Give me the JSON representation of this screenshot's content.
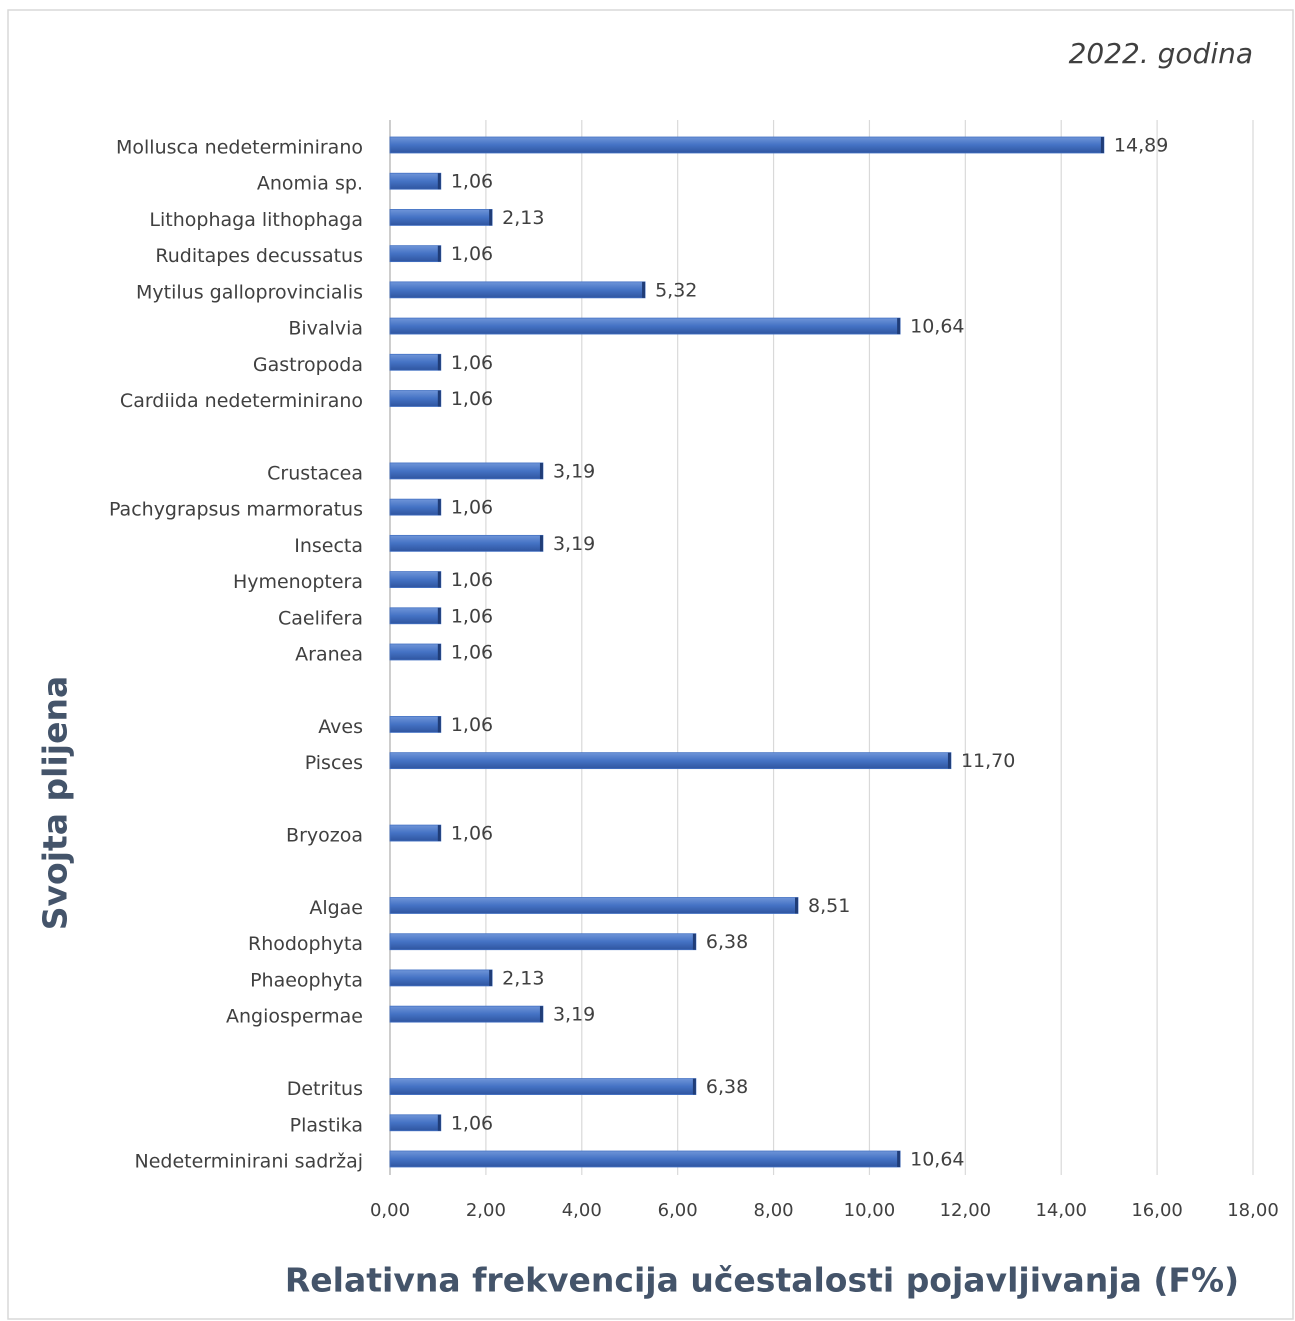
{
  "chart_data": {
    "type": "bar",
    "orientation": "horizontal",
    "title": "2022. godina",
    "x_label": "Relativna frekvencija učestalosti pojavljivanja (F%)",
    "y_label": "Svojta plijena",
    "color": "#4472c4",
    "grid": true,
    "categories": [
      "Mollusca nedeterminirano",
      "Anomia sp.",
      "Lithophaga lithophaga",
      "Ruditapes decussatus",
      "Mytilus galloprovincialis",
      "Bivalvia",
      "Gastropoda",
      "Cardiida nedeterminirano",
      null,
      "Crustacea",
      "Pachygrapsus marmoratus",
      "Insecta",
      "Hymenoptera",
      "Caelifera",
      "Aranea",
      null,
      "Aves",
      "Pisces",
      null,
      "Bryozoa",
      null,
      "Algae",
      "Rhodophyta",
      "Phaeophyta",
      "Angiospermae",
      null,
      "Detritus",
      "Plastika",
      "Nedeterminirani sadržaj"
    ],
    "values": [
      14.89,
      1.06,
      2.13,
      1.06,
      5.32,
      10.64,
      1.06,
      1.06,
      null,
      3.19,
      1.06,
      3.19,
      1.06,
      1.06,
      1.06,
      null,
      1.06,
      11.7,
      null,
      1.06,
      null,
      8.51,
      6.38,
      2.13,
      3.19,
      null,
      6.38,
      1.06,
      10.64
    ],
    "value_labels": [
      "14,89",
      "1,06",
      "2,13",
      "1,06",
      "5,32",
      "10,64",
      "1,06",
      "1,06",
      null,
      "3,19",
      "1,06",
      "3,19",
      "1,06",
      "1,06",
      "1,06",
      null,
      "1,06",
      "11,70",
      null,
      "1,06",
      null,
      "8,51",
      "6,38",
      "2,13",
      "3,19",
      null,
      "6,38",
      "1,06",
      "10,64"
    ],
    "xlim": [
      0,
      18
    ],
    "xticks": [
      {
        "value": 0,
        "label": "0,00"
      },
      {
        "value": 2,
        "label": "2,00"
      },
      {
        "value": 4,
        "label": "4,00"
      },
      {
        "value": 6,
        "label": "6,00"
      },
      {
        "value": 8,
        "label": "8,00"
      },
      {
        "value": 10,
        "label": "10,00"
      },
      {
        "value": 12,
        "label": "12,00"
      },
      {
        "value": 14,
        "label": "14,00"
      },
      {
        "value": 16,
        "label": "16,00"
      },
      {
        "value": 18,
        "label": "18,00"
      }
    ]
  }
}
